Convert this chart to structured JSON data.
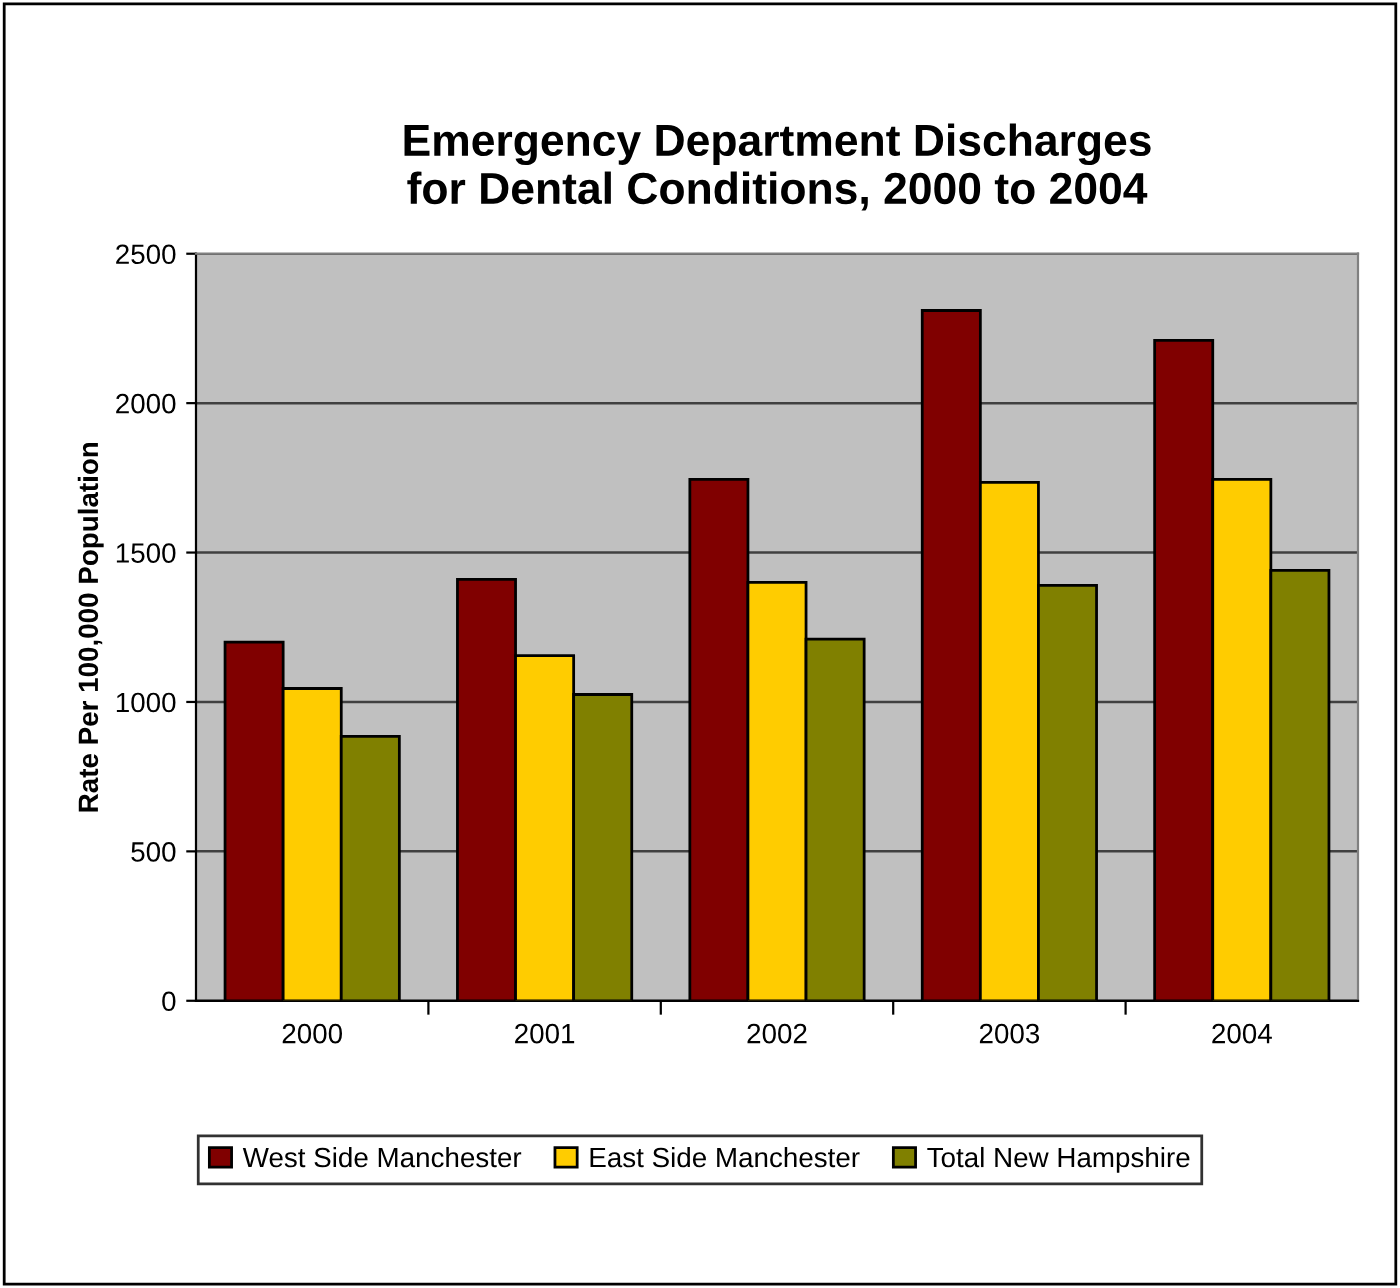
{
  "chart_data": {
    "type": "bar",
    "title": "Emergency Department Discharges\nfor Dental Conditions, 2000 to 2004",
    "ylabel": "Rate Per 100,000 Population",
    "categories": [
      "2000",
      "2001",
      "2002",
      "2003",
      "2004"
    ],
    "series": [
      {
        "name": "West Side Manchester",
        "color": "#800000",
        "values": [
          1200,
          1410,
          1745,
          2310,
          2210
        ]
      },
      {
        "name": "East Side Manchester",
        "color": "#ffcc00",
        "values": [
          1045,
          1155,
          1400,
          1735,
          1745
        ]
      },
      {
        "name": "Total New Hampshire",
        "color": "#808000",
        "values": [
          885,
          1025,
          1210,
          1390,
          1440
        ]
      }
    ],
    "ylim": [
      0,
      2500
    ],
    "yticks": [
      0,
      500,
      1000,
      1500,
      2000,
      2500
    ],
    "grid": "y",
    "legend": "bottom"
  }
}
